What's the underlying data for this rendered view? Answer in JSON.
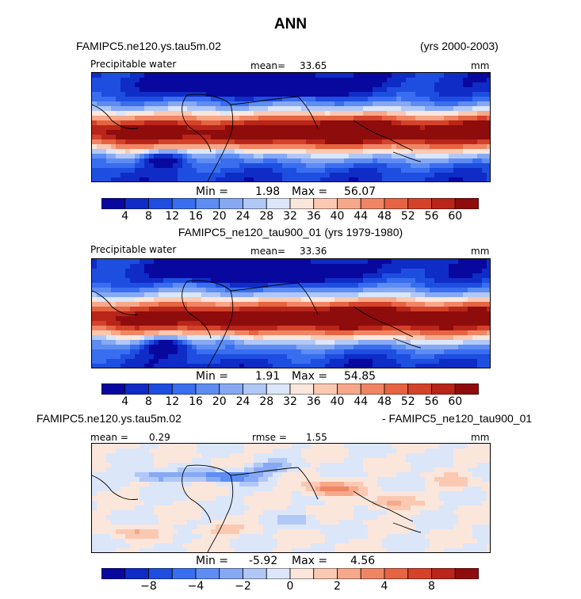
{
  "title": "ANN",
  "colors": {
    "abs_scale": [
      "#08089f",
      "#0f2cc7",
      "#1e4ee0",
      "#3a6ef0",
      "#5d8df3",
      "#87a9f4",
      "#b1c8f6",
      "#dbe6f9",
      "#fbe6dc",
      "#fbc9b2",
      "#f7a88a",
      "#f08564",
      "#e66441",
      "#d4422a",
      "#b92519",
      "#8e0c0c"
    ],
    "diff_scale": [
      "#08089f",
      "#0f2cc7",
      "#1e4ee0",
      "#3a6ef0",
      "#5d8df3",
      "#87a9f4",
      "#b1c8f6",
      "#dbe6f9",
      "#fbe6dc",
      "#fbc9b2",
      "#f7a88a",
      "#f08564",
      "#e66441",
      "#d4422a",
      "#b92519",
      "#8e0c0c"
    ]
  },
  "panels": [
    {
      "case_left": "FAMIPC5.ne120.ys.tau5m.02",
      "case_right": "(yrs 2000-2003)",
      "variable": "Precipitable water",
      "stat_label": "mean=",
      "stat_value": "33.65",
      "units": "mm",
      "min_label": "Min =",
      "min_value": "1.98",
      "max_label": "Max =",
      "max_value": "56.07",
      "colorbar_ticks": [
        "4",
        "8",
        "12",
        "16",
        "20",
        "24",
        "28",
        "32",
        "36",
        "40",
        "44",
        "48",
        "52",
        "56",
        "60"
      ]
    },
    {
      "case_center": "FAMIPC5_ne120_tau900_01 (yrs 1979-1980)",
      "variable": "Precipitable water",
      "stat_label": "mean=",
      "stat_value": "33.36",
      "units": "mm",
      "min_label": "Min =",
      "min_value": "1.91",
      "max_label": "Max =",
      "max_value": "54.85",
      "colorbar_ticks": [
        "4",
        "8",
        "12",
        "16",
        "20",
        "24",
        "28",
        "32",
        "36",
        "40",
        "44",
        "48",
        "52",
        "56",
        "60"
      ]
    },
    {
      "case_left": "FAMIPC5.ne120.ys.tau5m.02",
      "case_right": "- FAMIPC5_ne120_tau900_01",
      "stat_label": "mean =",
      "stat_value": "0.29",
      "rmse_label": "rmse =",
      "rmse_value": "1.55",
      "units": "mm",
      "min_label": "Min =",
      "min_value": "-5.92",
      "max_label": "Max =",
      "max_value": "4.56",
      "colorbar_ticks": [
        "−8",
        "−4",
        "−2",
        "0",
        "2",
        "4",
        "8"
      ]
    }
  ],
  "chart_data": [
    {
      "type": "heatmap",
      "description_of_field": "Annual mean precipitable water, global lat-lon map",
      "colorbar_levels": [
        4,
        8,
        12,
        16,
        20,
        24,
        28,
        32,
        36,
        40,
        44,
        48,
        52,
        56,
        60
      ],
      "mean": 33.65,
      "min": 1.98,
      "max": 56.07,
      "units": "mm"
    },
    {
      "type": "heatmap",
      "colorbar_levels": [
        4,
        8,
        12,
        16,
        20,
        24,
        28,
        32,
        36,
        40,
        44,
        48,
        52,
        56,
        60
      ],
      "mean": 33.36,
      "min": 1.91,
      "max": 54.85,
      "units": "mm"
    },
    {
      "type": "heatmap",
      "colorbar_levels": [
        -8,
        -6,
        -5,
        -4,
        -3,
        -2,
        -1,
        0,
        1,
        2,
        3,
        4,
        5,
        6,
        8
      ],
      "colorbar_labeled": [
        -8,
        -4,
        -2,
        0,
        2,
        4,
        8
      ],
      "mean": 0.29,
      "rmse": 1.55,
      "min": -5.92,
      "max": 4.56,
      "units": "mm"
    }
  ]
}
